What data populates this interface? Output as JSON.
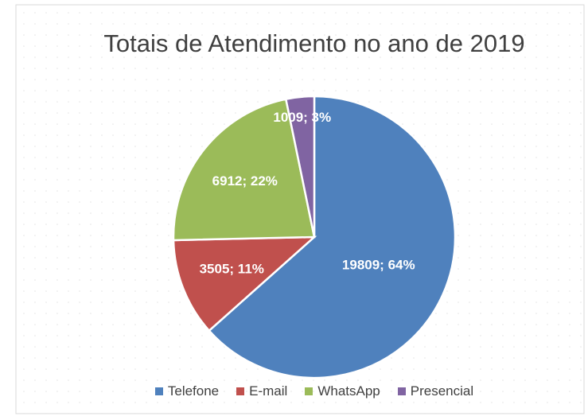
{
  "chart_data": {
    "type": "pie",
    "title": "Totais de Atendimento no ano de 2019",
    "categories": [
      "Telefone",
      "E-mail",
      "WhatsApp",
      "Presencial"
    ],
    "values": [
      19809,
      3505,
      6912,
      1009
    ],
    "value_labels": [
      "19809; 64%",
      "3505; 11%",
      "6912; 22%",
      "1009; 3%"
    ],
    "colors": [
      "#4f81bd",
      "#c0504d",
      "#9bbb59",
      "#8064a2"
    ],
    "legend": "bottom"
  }
}
